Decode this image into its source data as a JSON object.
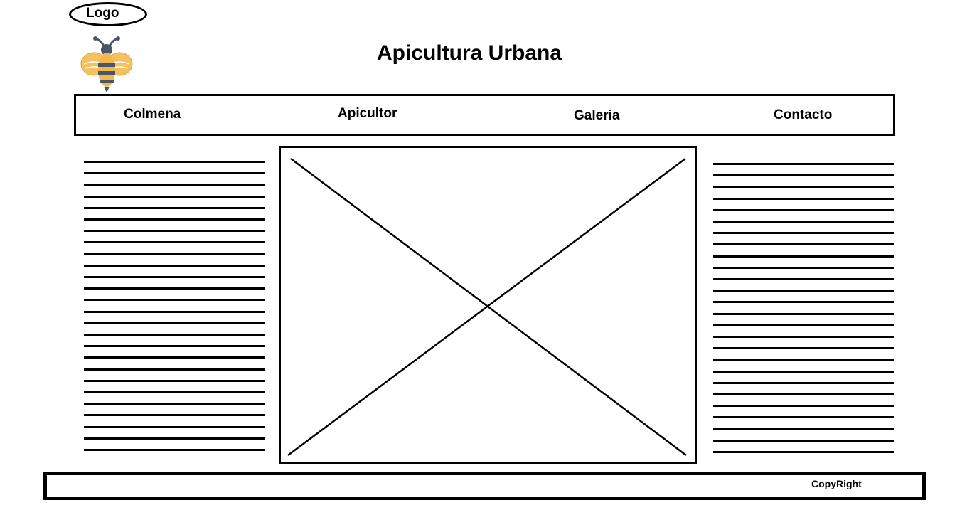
{
  "header": {
    "logo_label": "Logo",
    "logo_icon": "bee-icon",
    "title": "Apicultura Urbana"
  },
  "nav": {
    "items": [
      {
        "label": "Colmena"
      },
      {
        "label": "Apicultor"
      },
      {
        "label": "Galeria"
      },
      {
        "label": "Contacto"
      }
    ]
  },
  "main": {
    "image_placeholder_icon": "image-placeholder-icon"
  },
  "footer": {
    "copyright": "CopyRight"
  },
  "colors": {
    "stroke": "#000000",
    "bee_body": "#f2b84b",
    "bee_stripe": "#4a5568",
    "bee_wing": "#f5c060"
  }
}
